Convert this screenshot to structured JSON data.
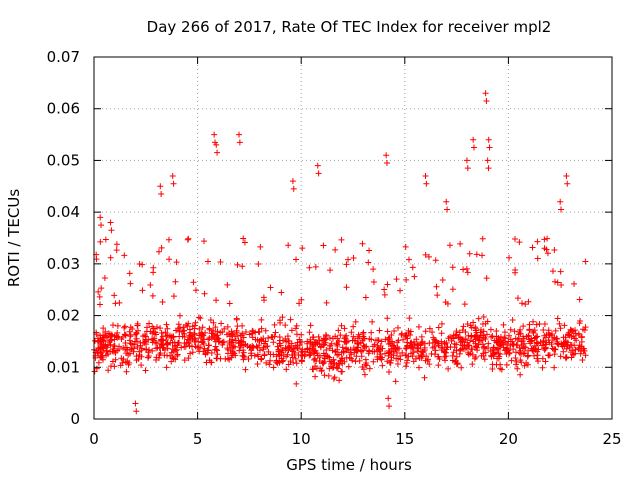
{
  "chart_data": {
    "type": "scatter",
    "title": "Day 266 of 2017, Rate Of TEC Index for receiver mpl2",
    "xlabel": "GPS time / hours",
    "ylabel": "ROTI / TECUs",
    "xlim": [
      0,
      25
    ],
    "ylim": [
      0,
      0.07
    ],
    "xticks": [
      "0",
      "5",
      "10",
      "15",
      "20",
      "25"
    ],
    "xtick_values": [
      0,
      5,
      10,
      15,
      20,
      25
    ],
    "yticks": [
      "0",
      "0.01",
      "0.02",
      "0.03",
      "0.04",
      "0.05",
      "0.06",
      "0.07"
    ],
    "ytick_values": [
      0,
      0.01,
      0.02,
      0.03,
      0.04,
      0.05,
      0.06,
      0.07
    ],
    "grid": true,
    "marker": "+",
    "series": [
      {
        "name": "ROTI",
        "color": "#ff0000",
        "x_range": [
          0,
          23.75
        ],
        "envelope": {
          "baseline_band": [
            0.007,
            0.022
          ],
          "typical_peak": 0.035
        },
        "notable_points": [
          {
            "x": 0.3,
            "y": 0.039
          },
          {
            "x": 0.8,
            "y": 0.038
          },
          {
            "x": 3.2,
            "y": 0.045
          },
          {
            "x": 3.8,
            "y": 0.047
          },
          {
            "x": 5.8,
            "y": 0.055
          },
          {
            "x": 5.9,
            "y": 0.053
          },
          {
            "x": 7.0,
            "y": 0.055
          },
          {
            "x": 9.6,
            "y": 0.046
          },
          {
            "x": 10.8,
            "y": 0.049
          },
          {
            "x": 14.1,
            "y": 0.051
          },
          {
            "x": 16.0,
            "y": 0.047
          },
          {
            "x": 17.0,
            "y": 0.042
          },
          {
            "x": 18.0,
            "y": 0.05
          },
          {
            "x": 18.3,
            "y": 0.054
          },
          {
            "x": 18.9,
            "y": 0.063
          },
          {
            "x": 19.05,
            "y": 0.054
          },
          {
            "x": 19.0,
            "y": 0.05
          },
          {
            "x": 22.8,
            "y": 0.047
          },
          {
            "x": 22.5,
            "y": 0.042
          },
          {
            "x": 2.0,
            "y": 0.003
          },
          {
            "x": 14.2,
            "y": 0.004
          }
        ]
      }
    ]
  }
}
